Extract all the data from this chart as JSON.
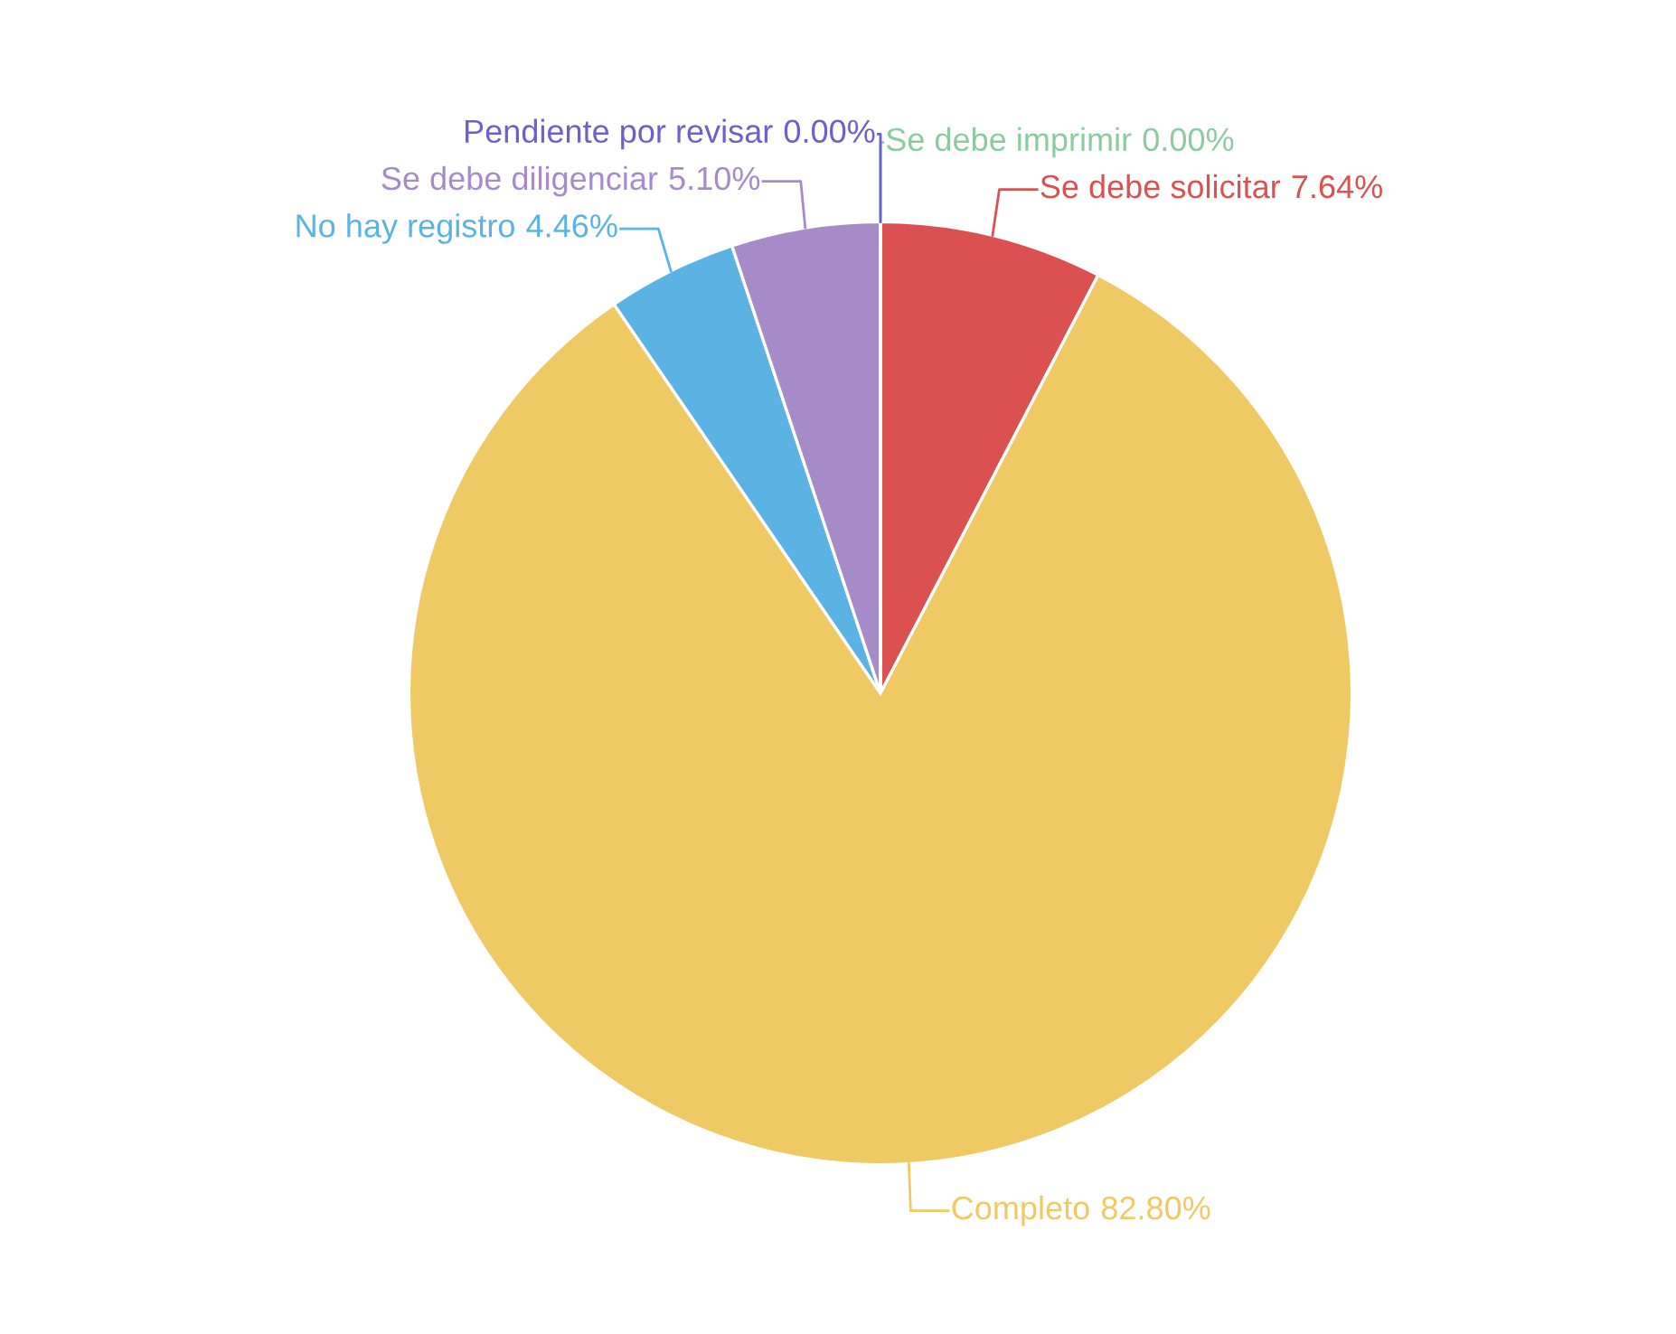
{
  "chart_data": {
    "type": "pie",
    "categories": [
      "Se debe imprimir",
      "Se debe solicitar",
      "Completo",
      "No hay registro",
      "Se debe diligenciar",
      "Pendiente por revisar"
    ],
    "values": [
      0.0,
      7.64,
      82.8,
      4.46,
      5.1,
      0.0
    ],
    "colors": [
      "#8ccba0",
      "#db5151",
      "#eec964",
      "#5ab3e2",
      "#a78bc9",
      "#6c5fd0"
    ],
    "value_labels": [
      "0.00%",
      "7.64%",
      "82.80%",
      "4.46%",
      "5.10%",
      "0.00%"
    ]
  }
}
